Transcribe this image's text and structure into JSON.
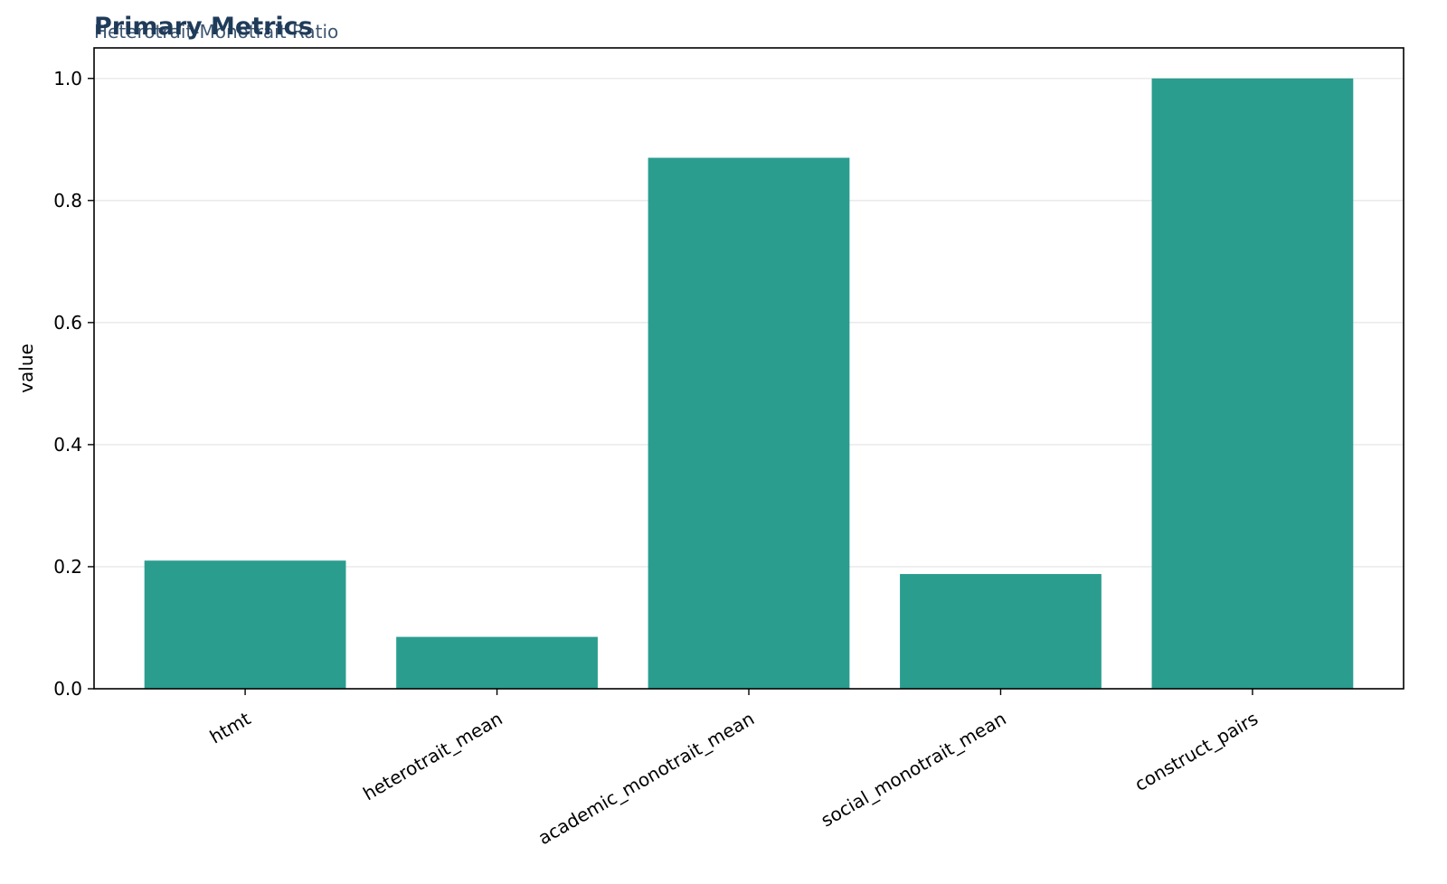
{
  "chart_data": {
    "type": "bar",
    "title": "Primary Metrics",
    "subtitle": "Heterotrait-Monotrait Ratio",
    "xlabel": "",
    "ylabel": "value",
    "categories": [
      "htmt",
      "heterotrait_mean",
      "academic_monotrait_mean",
      "social_monotrait_mean",
      "construct_pairs"
    ],
    "values": [
      0.21,
      0.085,
      0.87,
      0.188,
      1.0
    ],
    "ylim": [
      0,
      1.05
    ],
    "yticks": [
      "0.0",
      "0.2",
      "0.4",
      "0.6",
      "0.8",
      "1.0"
    ],
    "grid": "y",
    "bar_color": "#2a9d8f",
    "grid_color": "#ebebeb"
  }
}
